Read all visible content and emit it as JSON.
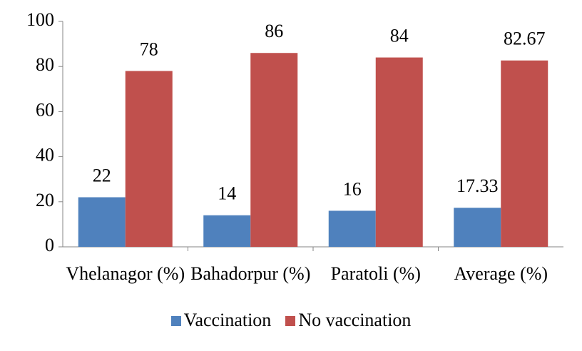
{
  "chart_data": {
    "type": "bar",
    "categories": [
      "Vhelanagor (%)",
      "Bahadorpur (%)",
      "Paratoli (%)",
      "Average (%)"
    ],
    "series": [
      {
        "name": "Vaccination",
        "color": "#4f81bd",
        "values": [
          22,
          14,
          16,
          17.33
        ]
      },
      {
        "name": "No vaccination",
        "color": "#c0504d",
        "values": [
          78,
          86,
          84,
          82.67
        ]
      }
    ],
    "ylim": [
      0,
      100
    ],
    "yticks": [
      0,
      20,
      40,
      60,
      80,
      100
    ],
    "grid": false,
    "legend": "bottom"
  }
}
